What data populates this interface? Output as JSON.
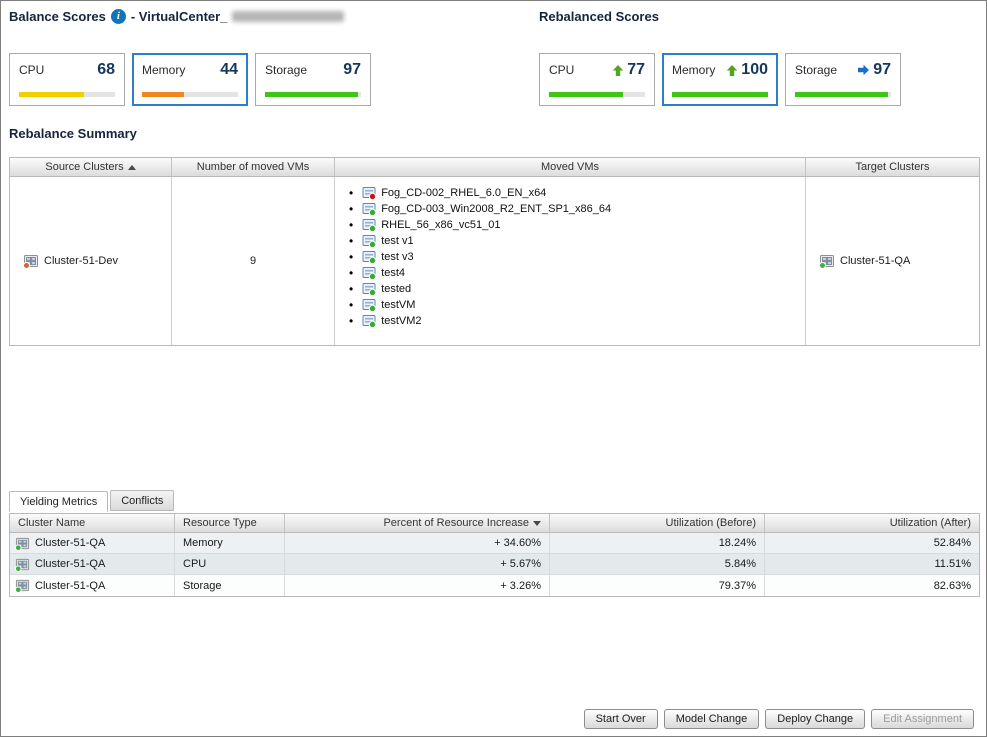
{
  "header": {
    "left_title": "Balance Scores",
    "left_subtitle": "- VirtualCenter_",
    "right_title": "Rebalanced Scores"
  },
  "icons": {
    "info_glyph": "i"
  },
  "balance_scores": [
    {
      "label": "CPU",
      "value": "68",
      "bar_pct": 68,
      "bar_color": "#f2cf00"
    },
    {
      "label": "Memory",
      "value": "44",
      "bar_pct": 44,
      "bar_color": "#f0861e"
    },
    {
      "label": "Storage",
      "value": "97",
      "bar_pct": 97,
      "bar_color": "#3dc615"
    }
  ],
  "rebalanced_scores": [
    {
      "label": "CPU",
      "value": "77",
      "bar_pct": 77,
      "bar_color": "#3dc615",
      "trend": "up",
      "trend_color": "#55a51c"
    },
    {
      "label": "Memory",
      "value": "100",
      "bar_pct": 100,
      "bar_color": "#3dc615",
      "trend": "up",
      "trend_color": "#55a51c"
    },
    {
      "label": "Storage",
      "value": "97",
      "bar_pct": 97,
      "bar_color": "#3dc615",
      "trend": "right",
      "trend_color": "#1d6ccc"
    }
  ],
  "summary": {
    "title": "Rebalance Summary",
    "columns": {
      "source": "Source Clusters",
      "count": "Number of moved VMs",
      "vms": "Moved VMs",
      "target": "Target Clusters"
    },
    "row": {
      "source_cluster": "Cluster-51-Dev",
      "source_dot": "#d0643c",
      "moved_count": "9",
      "target_cluster": "Cluster-51-QA",
      "target_dot": "#3fae49",
      "vms": [
        {
          "name": "Fog_CD-002_RHEL_6.0_EN_x64",
          "status_color": "#cc1111"
        },
        {
          "name": "Fog_CD-003_Win2008_R2_ENT_SP1_x86_64",
          "status_color": "#2fae2f"
        },
        {
          "name": "RHEL_56_x86_vc51_01",
          "status_color": "#2fae2f"
        },
        {
          "name": "test v1",
          "status_color": "#2fae2f"
        },
        {
          "name": "test v3",
          "status_color": "#2fae2f"
        },
        {
          "name": "test4",
          "status_color": "#2fae2f"
        },
        {
          "name": "tested",
          "status_color": "#2fae2f"
        },
        {
          "name": "testVM",
          "status_color": "#2fae2f"
        },
        {
          "name": "testVM2",
          "status_color": "#2fae2f"
        }
      ]
    }
  },
  "tabs": [
    {
      "label": "Yielding Metrics",
      "active": true
    },
    {
      "label": "Conflicts",
      "active": false
    }
  ],
  "metrics": {
    "columns": {
      "cluster": "Cluster Name",
      "resource": "Resource Type",
      "increase": "Percent of Resource Increase",
      "before": "Utilization (Before)",
      "after": "Utilization (After)"
    },
    "rows": [
      {
        "cluster": "Cluster-51-QA",
        "dot": "#3fae49",
        "resource": "Memory",
        "increase": "+ 34.60%",
        "before": "18.24%",
        "after": "52.84%"
      },
      {
        "cluster": "Cluster-51-QA",
        "dot": "#3fae49",
        "resource": "CPU",
        "increase": "+ 5.67%",
        "before": "5.84%",
        "after": "11.51%"
      },
      {
        "cluster": "Cluster-51-QA",
        "dot": "#3fae49",
        "resource": "Storage",
        "increase": "+ 3.26%",
        "before": "79.37%",
        "after": "82.63%"
      }
    ]
  },
  "buttons": [
    {
      "label": "Start Over",
      "enabled": true
    },
    {
      "label": "Model Change",
      "enabled": true
    },
    {
      "label": "Deploy Change",
      "enabled": true
    },
    {
      "label": "Edit Assignment",
      "enabled": false
    }
  ]
}
